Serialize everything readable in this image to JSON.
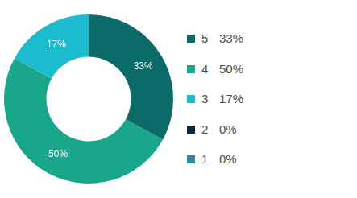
{
  "chart_data": {
    "type": "doughnut",
    "categories": [
      "5",
      "4",
      "3",
      "2",
      "1"
    ],
    "values": [
      33,
      50,
      17,
      0,
      0
    ],
    "value_labels": [
      "33%",
      "50%",
      "17%",
      "0%",
      "0%"
    ],
    "colors": [
      "#0b6b68",
      "#19a68b",
      "#1bbccf",
      "#0c2a3b",
      "#2a8ca3"
    ],
    "data_labels": true,
    "legend": "right"
  }
}
